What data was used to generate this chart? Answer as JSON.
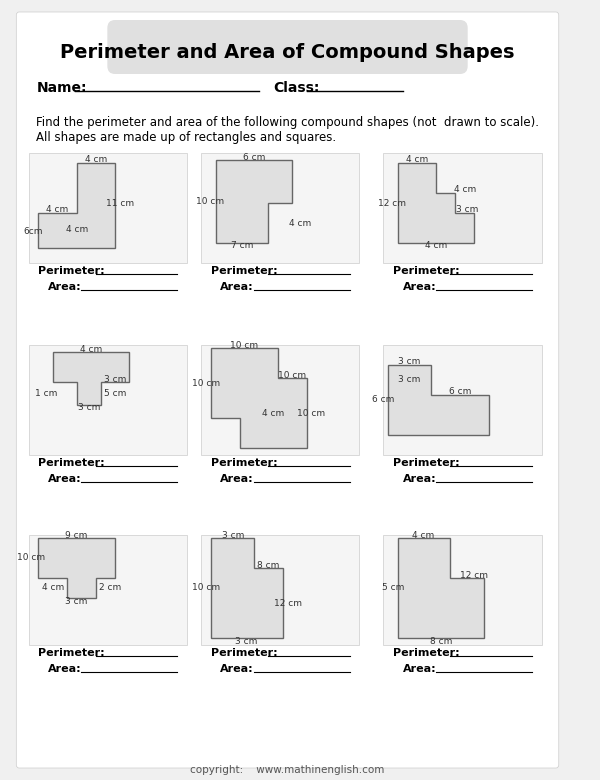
{
  "title": "Perimeter and Area of Compound Shapes",
  "instructions": "Find the perimeter and area of the following compound shapes (not  drawn to scale).\nAll shapes are made up of rectangles and squares.",
  "name_label": "Name:",
  "class_label": "Class:",
  "perimeter_label": "Perimeter:",
  "area_label": "Area:",
  "copyright": "copyright:    www.mathinenglish.com",
  "background_color": "#f0f0f0",
  "paper_color": "#ffffff",
  "shape_fill": "#e8e8e8",
  "shape_edge": "#888888",
  "title_bg": "#e0e0e0"
}
